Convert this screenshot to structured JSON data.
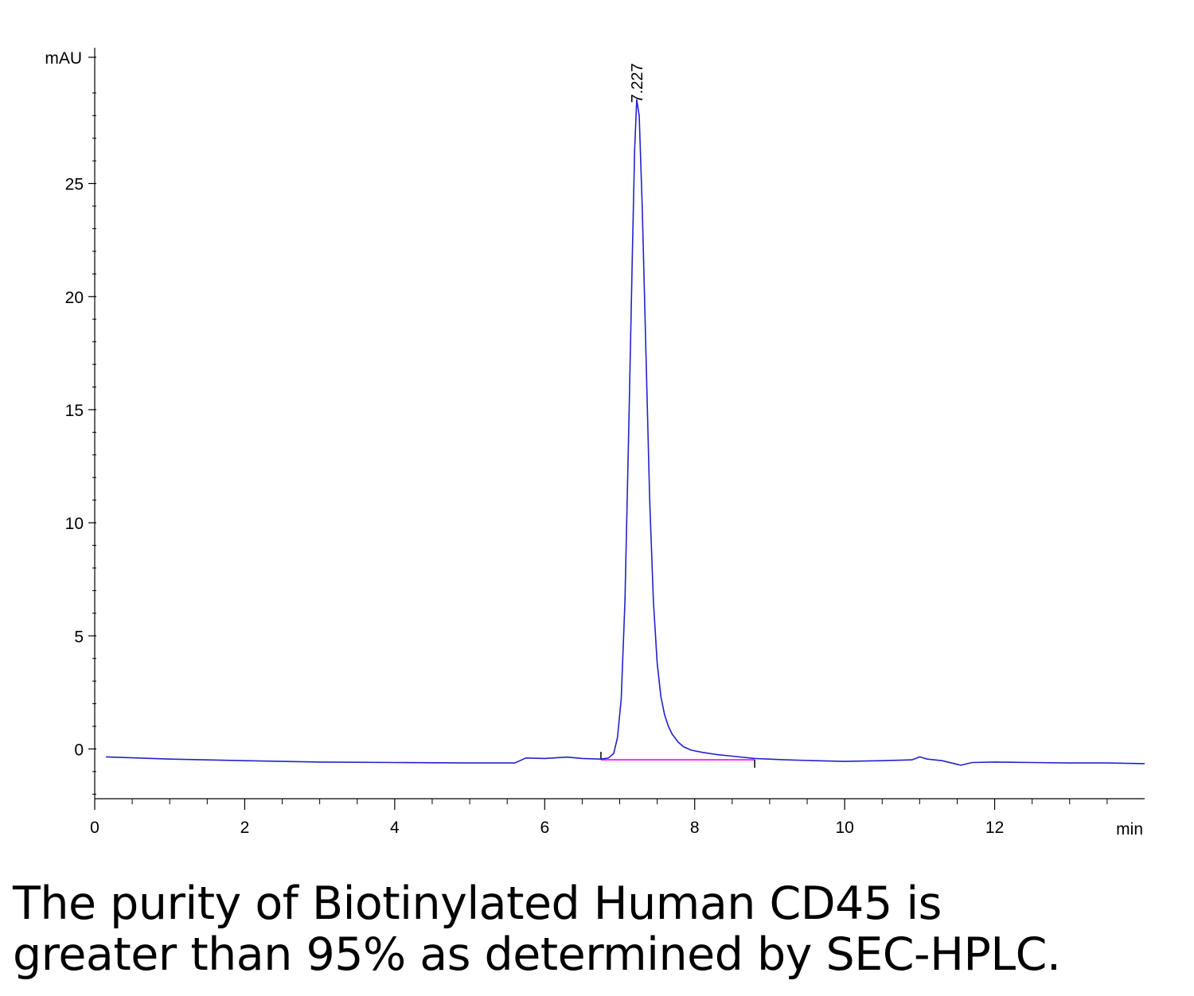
{
  "chart_data": {
    "type": "line",
    "title": "",
    "xlabel": "min",
    "ylabel": "mAU",
    "xlim": [
      0,
      14
    ],
    "ylim": [
      -2.2,
      31
    ],
    "x_ticks": [
      0,
      2,
      4,
      6,
      8,
      10,
      12
    ],
    "x_tick_labels": [
      "0",
      "2",
      "4",
      "6",
      "8",
      "10",
      "12"
    ],
    "y_ticks": [
      0,
      5,
      10,
      15,
      20,
      25
    ],
    "y_tick_labels": [
      "0",
      "5",
      "10",
      "15",
      "20",
      "25"
    ],
    "grid": false,
    "colors": {
      "trace": "#2222cc",
      "baseline": "#ff00ff",
      "axis": "#000000"
    },
    "series": [
      {
        "x": [
          0.15,
          1.0,
          2.0,
          3.0,
          4.0,
          5.0,
          5.6,
          5.75,
          6.0,
          6.3,
          6.5,
          6.75,
          6.85,
          6.92,
          6.97,
          7.02,
          7.07,
          7.12,
          7.17,
          7.2,
          7.227,
          7.26,
          7.3,
          7.35,
          7.4,
          7.45,
          7.5,
          7.55,
          7.6,
          7.65,
          7.7,
          7.78,
          7.85,
          7.95,
          8.1,
          8.3,
          8.5,
          8.8,
          9.2,
          9.6,
          10.0,
          10.5,
          10.9,
          11.0,
          11.1,
          11.3,
          11.5,
          11.55,
          11.7,
          12.0,
          12.5,
          13.0,
          13.5,
          14.0
        ],
        "y": [
          -0.35,
          -0.45,
          -0.52,
          -0.58,
          -0.6,
          -0.62,
          -0.62,
          -0.4,
          -0.42,
          -0.36,
          -0.42,
          -0.45,
          -0.4,
          -0.2,
          0.5,
          2.2,
          6.5,
          14.0,
          22.0,
          26.5,
          28.7,
          28.0,
          24.0,
          17.5,
          11.0,
          6.5,
          3.8,
          2.3,
          1.5,
          1.0,
          0.65,
          0.3,
          0.1,
          -0.05,
          -0.15,
          -0.25,
          -0.32,
          -0.42,
          -0.48,
          -0.52,
          -0.55,
          -0.52,
          -0.48,
          -0.35,
          -0.45,
          -0.52,
          -0.68,
          -0.72,
          -0.6,
          -0.58,
          -0.6,
          -0.62,
          -0.62,
          -0.65
        ]
      }
    ],
    "baseline_segment": {
      "x": [
        6.75,
        8.8
      ],
      "y": [
        -0.48,
        -0.48
      ]
    },
    "integration_ticks": [
      6.75,
      8.8
    ],
    "annotations": [
      {
        "text": "7.227",
        "x": 7.227,
        "y": 28.7
      }
    ]
  },
  "caption": {
    "line1": "The purity of Biotinylated Human CD45 is",
    "line2": "greater than 95% as determined by SEC-HPLC."
  }
}
